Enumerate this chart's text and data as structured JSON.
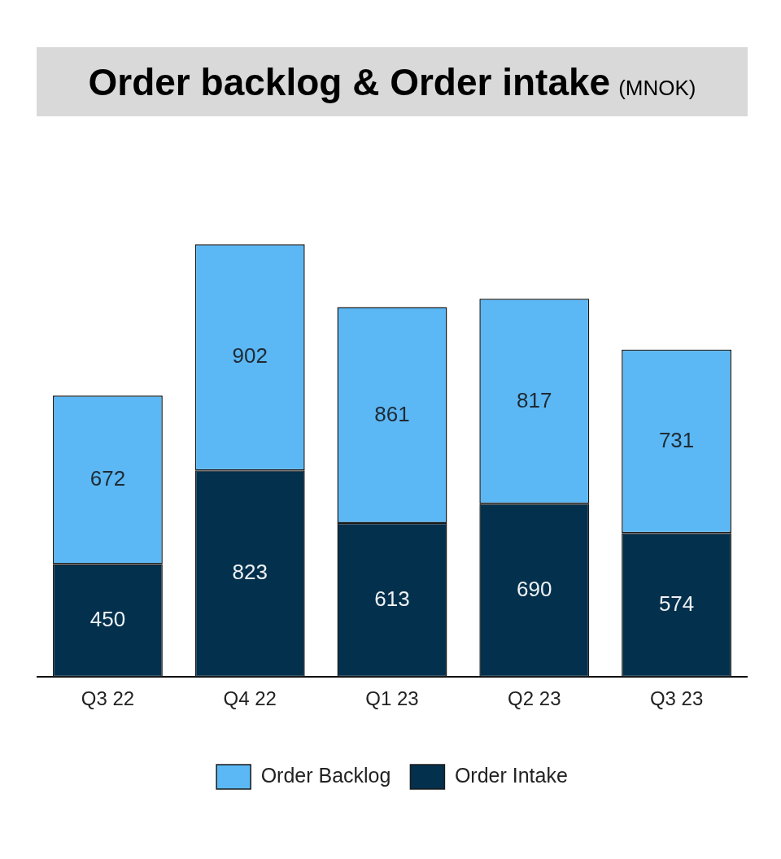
{
  "chart_data": {
    "type": "bar",
    "title": "Order backlog & Order intake",
    "subtitle": "(MNOK)",
    "categories": [
      "Q3 22",
      "Q4 22",
      "Q1 23",
      "Q2 23",
      "Q3 23"
    ],
    "stacked": true,
    "series": [
      {
        "name": "Order Intake",
        "color": "#03304d",
        "values": [
          450,
          823,
          613,
          690,
          574
        ]
      },
      {
        "name": "Order Backlog",
        "color": "#5bb8f5",
        "values": [
          672,
          902,
          861,
          817,
          731
        ]
      }
    ],
    "data_labels": true,
    "legend": "bottom",
    "grid": false
  }
}
